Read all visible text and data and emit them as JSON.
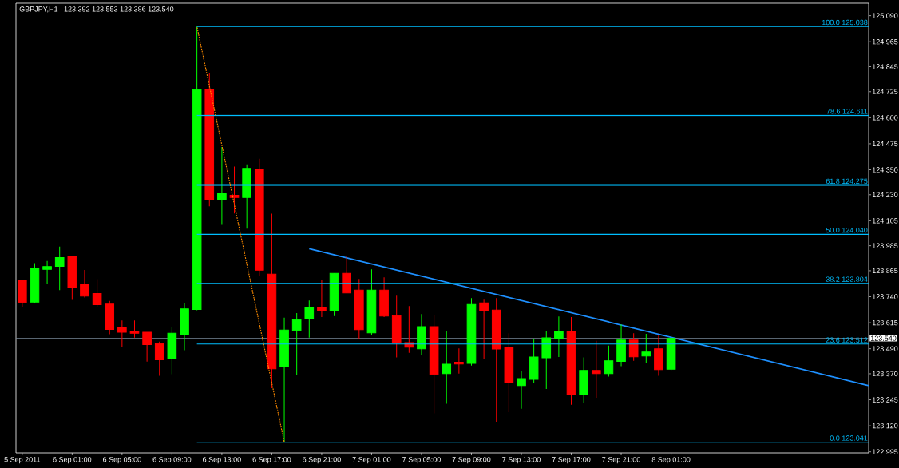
{
  "chart_data": {
    "type": "candlestick",
    "title": "GBPJPY,H1",
    "subtitle": "123.392 123.553 123.386 123.540",
    "x": [
      "2011-09-05T21:00",
      "2011-09-05T22:00",
      "2011-09-05T23:00",
      "2011-09-06T00:00",
      "2011-09-06T01:00",
      "2011-09-06T02:00",
      "2011-09-06T03:00",
      "2011-09-06T04:00",
      "2011-09-06T05:00",
      "2011-09-06T06:00",
      "2011-09-06T07:00",
      "2011-09-06T08:00",
      "2011-09-06T09:00",
      "2011-09-06T10:00",
      "2011-09-06T11:00",
      "2011-09-06T12:00",
      "2011-09-06T13:00",
      "2011-09-06T14:00",
      "2011-09-06T15:00",
      "2011-09-06T16:00",
      "2011-09-06T17:00",
      "2011-09-06T18:00",
      "2011-09-06T19:00",
      "2011-09-06T20:00",
      "2011-09-06T21:00",
      "2011-09-06T22:00",
      "2011-09-06T23:00",
      "2011-09-07T00:00",
      "2011-09-07T01:00",
      "2011-09-07T02:00",
      "2011-09-07T03:00",
      "2011-09-07T04:00",
      "2011-09-07T05:00",
      "2011-09-07T06:00",
      "2011-09-07T07:00",
      "2011-09-07T08:00",
      "2011-09-07T09:00",
      "2011-09-07T10:00",
      "2011-09-07T11:00",
      "2011-09-07T12:00",
      "2011-09-07T13:00",
      "2011-09-07T14:00",
      "2011-09-07T15:00",
      "2011-09-07T16:00",
      "2011-09-07T17:00",
      "2011-09-07T18:00",
      "2011-09-07T19:00",
      "2011-09-07T20:00",
      "2011-09-07T21:00",
      "2011-09-07T22:00",
      "2011-09-07T23:00",
      "2011-09-08T00:00",
      "2011-09-08T01:00"
    ],
    "ohlc": [
      [
        123.819,
        123.821,
        123.689,
        123.712
      ],
      [
        123.714,
        123.901,
        123.709,
        123.876
      ],
      [
        123.871,
        123.912,
        123.801,
        123.885
      ],
      [
        123.886,
        123.981,
        123.772,
        123.928
      ],
      [
        123.934,
        123.934,
        123.725,
        123.782
      ],
      [
        123.798,
        123.869,
        123.736,
        123.743
      ],
      [
        123.755,
        123.824,
        123.691,
        123.702
      ],
      [
        123.705,
        123.72,
        123.56,
        123.583
      ],
      [
        123.59,
        123.626,
        123.496,
        123.569
      ],
      [
        123.573,
        123.626,
        123.543,
        123.565
      ],
      [
        123.569,
        123.569,
        123.428,
        123.51
      ],
      [
        123.515,
        123.524,
        123.36,
        123.437
      ],
      [
        123.443,
        123.595,
        123.368,
        123.565
      ],
      [
        123.56,
        123.709,
        123.483,
        123.682
      ],
      [
        123.679,
        125.038,
        123.675,
        124.735
      ],
      [
        124.736,
        124.816,
        124.175,
        124.208
      ],
      [
        124.208,
        124.459,
        124.085,
        124.235
      ],
      [
        124.227,
        124.365,
        124.14,
        124.217
      ],
      [
        124.217,
        124.376,
        124.067,
        124.357
      ],
      [
        124.353,
        124.403,
        123.838,
        123.868
      ],
      [
        123.848,
        124.139,
        123.301,
        123.394
      ],
      [
        123.404,
        123.639,
        123.041,
        123.58
      ],
      [
        123.578,
        123.661,
        123.366,
        123.63
      ],
      [
        123.635,
        123.722,
        123.543,
        123.688
      ],
      [
        123.688,
        123.821,
        123.642,
        123.673
      ],
      [
        123.673,
        123.852,
        123.647,
        123.852
      ],
      [
        123.852,
        123.936,
        123.758,
        123.758
      ],
      [
        123.772,
        123.825,
        123.539,
        123.582
      ],
      [
        123.566,
        123.871,
        123.555,
        123.772
      ],
      [
        123.772,
        123.833,
        123.642,
        123.647
      ],
      [
        123.649,
        123.745,
        123.448,
        123.517
      ],
      [
        123.519,
        123.695,
        123.471,
        123.497
      ],
      [
        123.49,
        123.657,
        123.458,
        123.596
      ],
      [
        123.596,
        123.653,
        123.18,
        123.367
      ],
      [
        123.371,
        123.573,
        123.226,
        123.416
      ],
      [
        123.425,
        123.492,
        123.371,
        123.417
      ],
      [
        123.42,
        123.733,
        123.409,
        123.703
      ],
      [
        123.71,
        123.726,
        123.439,
        123.672
      ],
      [
        123.676,
        123.733,
        123.14,
        123.489
      ],
      [
        123.496,
        123.565,
        123.186,
        123.328
      ],
      [
        123.313,
        123.381,
        123.202,
        123.347
      ],
      [
        123.343,
        123.535,
        123.328,
        123.45
      ],
      [
        123.447,
        123.577,
        123.297,
        123.542
      ],
      [
        123.538,
        123.645,
        123.45,
        123.573
      ],
      [
        123.573,
        123.642,
        123.221,
        123.27
      ],
      [
        123.27,
        123.448,
        123.228,
        123.386
      ],
      [
        123.386,
        123.528,
        123.255,
        123.371
      ],
      [
        123.371,
        123.505,
        123.356,
        123.432
      ],
      [
        123.429,
        123.607,
        123.406,
        123.532
      ],
      [
        123.532,
        123.565,
        123.432,
        123.451
      ],
      [
        123.455,
        123.562,
        123.421,
        123.474
      ],
      [
        123.49,
        123.555,
        123.36,
        123.39
      ],
      [
        123.392,
        123.553,
        123.386,
        123.54
      ]
    ],
    "colors": [
      "#ff0000",
      "#00ff00",
      "#00ff00",
      "#00ff00",
      "#ff0000",
      "#ff0000",
      "#ff0000",
      "#ff0000",
      "#ff0000",
      "#ff0000",
      "#ff0000",
      "#ff0000",
      "#00ff00",
      "#00ff00",
      "#00ff00",
      "#ff0000",
      "#00ff00",
      "#ff0000",
      "#00ff00",
      "#ff0000",
      "#ff0000",
      "#00ff00",
      "#00ff00",
      "#00ff00",
      "#ff0000",
      "#00ff00",
      "#ff0000",
      "#ff0000",
      "#00ff00",
      "#ff0000",
      "#ff0000",
      "#ff0000",
      "#00ff00",
      "#ff0000",
      "#00ff00",
      "#ff0000",
      "#00ff00",
      "#ff0000",
      "#ff0000",
      "#ff0000",
      "#00ff00",
      "#00ff00",
      "#00ff00",
      "#00ff00",
      "#ff0000",
      "#00ff00",
      "#ff0000",
      "#00ff00",
      "#00ff00",
      "#ff0000",
      "#00ff00",
      "#ff0000",
      "#00ff00"
    ],
    "series": [
      {
        "type": "line",
        "name": "100.0 125.038",
        "color": "#00bfff",
        "x": [
          "2011-09-06T11:00",
          "2011-09-08T16:50"
        ],
        "values": [
          125.038,
          125.038
        ]
      },
      {
        "type": "line",
        "name": "78.6 124.611",
        "color": "#00bfff",
        "x": [
          "2011-09-06T11:00",
          "2011-09-08T16:50"
        ],
        "values": [
          124.611,
          124.611
        ]
      },
      {
        "type": "line",
        "name": "61.8 124.275",
        "color": "#00bfff",
        "x": [
          "2011-09-06T11:00",
          "2011-09-08T16:50"
        ],
        "values": [
          124.275,
          124.275
        ]
      },
      {
        "type": "line",
        "name": "50.0 124.040",
        "color": "#00bfff",
        "x": [
          "2011-09-06T11:00",
          "2011-09-08T16:50"
        ],
        "values": [
          124.04,
          124.04
        ]
      },
      {
        "type": "line",
        "name": "38.2 123.804",
        "color": "#00bfff",
        "x": [
          "2011-09-06T11:00",
          "2011-09-08T16:50"
        ],
        "values": [
          123.804,
          123.804
        ]
      },
      {
        "type": "line",
        "name": "23.6 123.512",
        "color": "#00bfff",
        "x": [
          "2011-09-06T11:00",
          "2011-09-08T16:50"
        ],
        "values": [
          123.512,
          123.512
        ]
      },
      {
        "type": "line",
        "name": "0.0 123.041",
        "color": "#00bfff",
        "x": [
          "2011-09-06T11:00",
          "2011-09-08T16:50"
        ],
        "values": [
          123.041,
          123.041
        ]
      },
      {
        "type": "line",
        "color": "#ff8c00",
        "line_style": "dotted",
        "x": [
          "2011-09-06T11:00",
          "2011-09-06T18:00"
        ],
        "values": [
          125.038,
          123.041
        ]
      },
      {
        "type": "line",
        "color": "#1e90ff",
        "x": [
          "2011-09-06T20:00",
          "2011-09-08T16:50"
        ],
        "values": [
          123.971,
          123.313
        ]
      }
    ],
    "ref_lines": [
      {
        "axis": "y",
        "value": 123.54,
        "label": "123.540",
        "color": "#778899"
      }
    ],
    "xlim": [
      "2011-09-05T20:30",
      "2011-09-08T16:50"
    ],
    "ylim": [
      122.99,
      125.15
    ],
    "xticks": [
      {
        "value": "2011-09-05T21:00",
        "label": "5 Sep 2011"
      },
      {
        "value": "2011-09-06T01:00",
        "label": "6 Sep 01:00"
      },
      {
        "value": "2011-09-06T05:00",
        "label": "6 Sep 05:00"
      },
      {
        "value": "2011-09-06T09:00",
        "label": "6 Sep 09:00"
      },
      {
        "value": "2011-09-06T13:00",
        "label": "6 Sep 13:00"
      },
      {
        "value": "2011-09-06T17:00",
        "label": "6 Sep 17:00"
      },
      {
        "value": "2011-09-06T21:00",
        "label": "6 Sep 21:00"
      },
      {
        "value": "2011-09-07T01:00",
        "label": "7 Sep 01:00"
      },
      {
        "value": "2011-09-07T05:00",
        "label": "7 Sep 05:00"
      },
      {
        "value": "2011-09-07T09:00",
        "label": "7 Sep 09:00"
      },
      {
        "value": "2011-09-07T13:00",
        "label": "7 Sep 13:00"
      },
      {
        "value": "2011-09-07T17:00",
        "label": "7 Sep 17:00"
      },
      {
        "value": "2011-09-07T21:00",
        "label": "7 Sep 21:00"
      },
      {
        "value": "2011-09-08T01:00",
        "label": "8 Sep 01:00"
      }
    ],
    "yticks": [
      {
        "value": 125.09,
        "label": "125.090"
      },
      {
        "value": 124.965,
        "label": "124.965"
      },
      {
        "value": 124.845,
        "label": "124.845"
      },
      {
        "value": 124.725,
        "label": "124.725"
      },
      {
        "value": 124.6,
        "label": "124.600"
      },
      {
        "value": 124.475,
        "label": "124.475"
      },
      {
        "value": 124.35,
        "label": "124.350"
      },
      {
        "value": 124.23,
        "label": "124.230"
      },
      {
        "value": 124.105,
        "label": "124.105"
      },
      {
        "value": 123.985,
        "label": "123.985"
      },
      {
        "value": 123.865,
        "label": "123.865"
      },
      {
        "value": 123.74,
        "label": "123.740"
      },
      {
        "value": 123.615,
        "label": "123.615"
      },
      {
        "value": 123.49,
        "label": "123.490"
      },
      {
        "value": 123.37,
        "label": "123.370"
      },
      {
        "value": 123.245,
        "label": "123.245"
      },
      {
        "value": 123.12,
        "label": "123.120"
      },
      {
        "value": 122.995,
        "label": "122.995"
      }
    ]
  }
}
